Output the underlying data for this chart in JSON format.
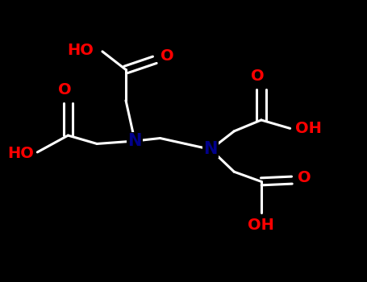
{
  "background_color": "#000000",
  "bond_color": "#ffffff",
  "n_color": "#00008B",
  "o_color": "#FF0000",
  "figsize": [
    4.55,
    3.5
  ],
  "dpi": 100,
  "N1": [
    0.36,
    0.5
  ],
  "N2": [
    0.57,
    0.47
  ],
  "bond_lw": 2.2,
  "font_size": 14
}
